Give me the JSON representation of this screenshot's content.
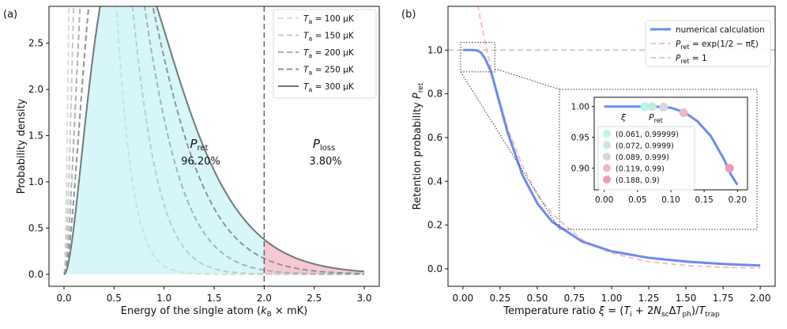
{
  "chart_data": [
    {
      "type": "area",
      "panel_label": "(a)",
      "xlabel": "Energy of the single atom (k_B × mK)",
      "ylabel": "Probability density",
      "xlim": [
        -0.15,
        3.15
      ],
      "ylim": [
        -0.13,
        2.9
      ],
      "xticks": [
        0.0,
        0.5,
        1.0,
        1.5,
        2.0,
        2.5,
        3.0
      ],
      "yticks": [
        0.0,
        0.5,
        1.0,
        1.5,
        2.0,
        2.5
      ],
      "threshold_x": 2.0,
      "series": [
        {
          "name": "Ta = 100 μK",
          "label_pre": "T",
          "label_sub": "a",
          "label_post": " = 100 μK",
          "temperature_mK": 0.1,
          "style": "dashed",
          "color": "#d9dcdc"
        },
        {
          "name": "Ta = 150 μK",
          "label_pre": "T",
          "label_sub": "a",
          "label_post": " = 150 μK",
          "temperature_mK": 0.15,
          "style": "dashed",
          "color": "#c5caca"
        },
        {
          "name": "Ta = 200 μK",
          "label_pre": "T",
          "label_sub": "a",
          "label_post": " = 200 μK",
          "temperature_mK": 0.2,
          "style": "dashed",
          "color": "#aab1b1"
        },
        {
          "name": "Ta = 250 μK",
          "label_pre": "T",
          "label_sub": "a",
          "label_post": " = 250 μK",
          "temperature_mK": 0.25,
          "style": "dashed",
          "color": "#8c9494"
        },
        {
          "name": "Ta = 300 μK",
          "label_pre": "T",
          "label_sub": "a",
          "label_post": " = 300 μK",
          "temperature_mK": 0.3,
          "style": "solid",
          "color": "#6f7878"
        }
      ],
      "annotations": {
        "p_ret_symbol": "P",
        "p_ret_sub": "ret",
        "p_ret_value": "96.20%",
        "p_loss_symbol": "P",
        "p_loss_sub": "loss",
        "p_loss_value": "3.80%"
      },
      "colors": {
        "retained_fill": "#d6f6fa",
        "lost_fill": "#f6c9d4",
        "ret_text": "#86e0ec",
        "loss_text": "#e8607c",
        "threshold_line": "#5c6767"
      }
    },
    {
      "type": "line",
      "panel_label": "(b)",
      "xlabel": "Temperature ratio ξ = (T_i + 2N_sc ΔT_ph)/T_trap",
      "ylabel": "Retention probability P_ret",
      "xlim": [
        -0.1,
        2.1
      ],
      "ylim": [
        -0.08,
        1.2
      ],
      "xticks": [
        0.0,
        0.25,
        0.5,
        0.75,
        1.0,
        1.25,
        1.5,
        1.75,
        2.0
      ],
      "xtick_labels": [
        "0.00",
        "0.25",
        "0.50",
        "0.75",
        "1.00",
        "1.25",
        "1.50",
        "1.75",
        "2.00"
      ],
      "yticks": [
        0.0,
        0.2,
        0.4,
        0.6,
        0.8,
        1.0
      ],
      "ytick_labels": [
        "0.0",
        "0.2",
        "0.4",
        "0.6",
        "0.8",
        "1.0"
      ],
      "series": [
        {
          "name": "numerical calculation",
          "style": "solid",
          "color": "#6a8bef",
          "x": [
            0.0,
            0.06,
            0.09,
            0.12,
            0.15,
            0.19,
            0.25,
            0.3,
            0.4,
            0.5,
            0.6,
            0.8,
            1.0,
            1.25,
            1.5,
            1.75,
            2.0
          ],
          "y": [
            1.0,
            1.0,
            0.999,
            0.99,
            0.96,
            0.9,
            0.75,
            0.625,
            0.43,
            0.3,
            0.215,
            0.125,
            0.08,
            0.05,
            0.033,
            0.022,
            0.015
          ]
        },
        {
          "name": "P_ret = exp(1/2 − πξ)",
          "label_text": " = exp(1/2 − πξ)",
          "style": "dashed",
          "color": "#f6b8c8",
          "x": [
            0.1,
            0.12,
            0.15,
            0.2,
            0.3,
            0.4,
            0.5,
            0.6,
            0.8,
            1.0,
            1.25,
            1.5,
            1.75,
            2.0
          ],
          "y": [
            1.206,
            1.133,
            1.033,
            0.882,
            0.645,
            0.47,
            0.343,
            0.251,
            0.134,
            0.071,
            0.032,
            0.015,
            0.007,
            0.003
          ]
        },
        {
          "name": "P_ret = 1",
          "label_text": " = 1",
          "style": "dashed",
          "color": "#c9cccc",
          "x": [
            -0.1,
            2.1
          ],
          "y": [
            1.0,
            1.0
          ]
        }
      ],
      "inset": {
        "xlim": [
          -0.015,
          0.215
        ],
        "ylim": [
          0.865,
          1.015
        ],
        "xticks": [
          0.0,
          0.05,
          0.1,
          0.15,
          0.2
        ],
        "xtick_labels": [
          "0.00",
          "0.05",
          "0.10",
          "0.15",
          "0.20"
        ],
        "yticks": [
          0.9,
          0.95,
          1.0
        ],
        "ytick_labels": [
          "0.90",
          "0.95",
          "1.00"
        ],
        "curve": {
          "x": [
            0.0,
            0.02,
            0.04,
            0.06,
            0.08,
            0.1,
            0.12,
            0.14,
            0.16,
            0.18,
            0.19,
            0.2
          ],
          "y": [
            1.0,
            1.0,
            1.0,
            1.0,
            0.9996,
            0.998,
            0.991,
            0.976,
            0.952,
            0.914,
            0.89,
            0.873
          ]
        },
        "legend_header_xi": "ξ",
        "legend_header_p": "P",
        "legend_header_p_sub": "ret",
        "points": [
          {
            "label": "(0.061, 0.99999)",
            "xi": 0.061,
            "p": 0.99999,
            "color": "#b6f4ee"
          },
          {
            "label": "(0.072, 0.9999)",
            "xi": 0.072,
            "p": 0.9999,
            "color": "#c8e8de"
          },
          {
            "label": "(0.089, 0.999)",
            "xi": 0.089,
            "p": 0.999,
            "color": "#d8d5de"
          },
          {
            "label": "(0.119, 0.99)",
            "xi": 0.119,
            "p": 0.99,
            "color": "#eab9cc"
          },
          {
            "label": "(0.188, 0.9)",
            "xi": 0.188,
            "p": 0.9,
            "color": "#ee99b6"
          }
        ]
      }
    }
  ]
}
